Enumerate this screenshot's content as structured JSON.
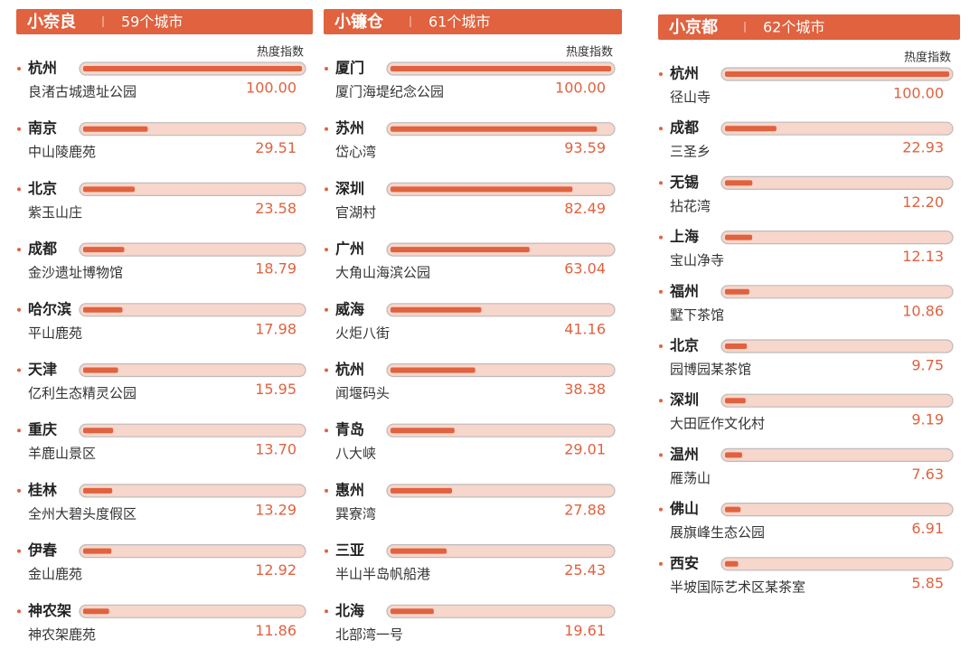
{
  "chart_data": [
    {
      "type": "bar",
      "title": "小奈良",
      "subtitle": "59个城市",
      "value_label_title": "热度指数",
      "color": "#e0623f",
      "categories": [
        "杭州",
        "南京",
        "北京",
        "成都",
        "哈尔滨",
        "天津",
        "重庆",
        "桂林",
        "伊春",
        "神农架"
      ],
      "subcategories": [
        "良渚古城遗址公园",
        "中山陵鹿苑",
        "紫玉山庄",
        "金沙遗址博物馆",
        "平山鹿苑",
        "亿利生态精灵公园",
        "羊鹿山景区",
        "全州大碧头度假区",
        "金山鹿苑",
        "神农架鹿苑"
      ],
      "values": [
        100,
        29.51,
        23.58,
        18.79,
        17.98,
        15.95,
        13.7,
        13.29,
        12.92,
        11.86
      ],
      "value_labels": [
        "100.00",
        "29.51",
        "23.58",
        "18.79",
        "17.98",
        "15.95",
        "13.70",
        "13.29",
        "12.92",
        "11.86"
      ]
    },
    {
      "type": "bar",
      "title": "小镰仓",
      "subtitle": "61个城市",
      "value_label_title": "热度指数",
      "color": "#e0623f",
      "categories": [
        "厦门",
        "苏州",
        "深圳",
        "广州",
        "威海",
        "杭州",
        "青岛",
        "惠州",
        "三亚",
        "北海"
      ],
      "subcategories": [
        "厦门海堤纪念公园",
        "岱心湾",
        "官湖村",
        "大角山海滨公园",
        "火炬八街",
        "闻堰码头",
        "八大峡",
        "巽寮湾",
        "半山半岛帆船港",
        "北部湾一号"
      ],
      "values": [
        100,
        93.59,
        82.49,
        63.04,
        41.16,
        38.38,
        29.01,
        27.88,
        25.43,
        19.61
      ],
      "value_labels": [
        "100.00",
        "93.59",
        "82.49",
        "63.04",
        "41.16",
        "38.38",
        "29.01",
        "27.88",
        "25.43",
        "19.61"
      ]
    },
    {
      "type": "bar",
      "title": "小京都",
      "subtitle": "62个城市",
      "value_label_title": "热度指数",
      "color": "#e0623f",
      "categories": [
        "杭州",
        "成都",
        "无锡",
        "上海",
        "福州",
        "北京",
        "深圳",
        "温州",
        "佛山",
        "西安"
      ],
      "subcategories": [
        "径山寺",
        "三圣乡",
        "拈花湾",
        "宝山净寺",
        "墅下茶馆",
        "园博园某茶馆",
        "大田匠作文化村",
        "雁荡山",
        "展旗峰生态公园",
        "半坡国际艺术区某茶室"
      ],
      "values": [
        100,
        22.93,
        12.2,
        12.13,
        10.86,
        9.75,
        9.19,
        7.63,
        6.91,
        5.85
      ],
      "value_labels": [
        "100.00",
        "22.93",
        "12.20",
        "12.13",
        "10.86",
        "9.75",
        "9.19",
        "7.63",
        "6.91",
        "5.85"
      ]
    }
  ]
}
